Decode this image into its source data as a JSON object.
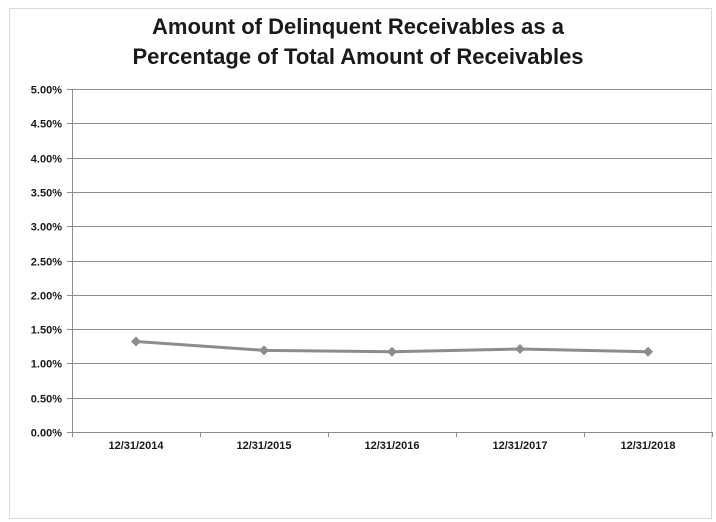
{
  "chart_data": {
    "type": "line",
    "title_lines": [
      "Amount of Delinquent Receivables as a",
      "Percentage of Total Amount of Receivables"
    ],
    "categories": [
      "12/31/2014",
      "12/31/2015",
      "12/31/2016",
      "12/31/2017",
      "12/31/2018"
    ],
    "series": [
      {
        "values": [
          1.32,
          1.19,
          1.17,
          1.21,
          1.17
        ]
      }
    ],
    "ylim": [
      0,
      5
    ],
    "ytick_values": [
      0,
      0.5,
      1,
      1.5,
      2,
      2.5,
      3,
      3.5,
      4,
      4.5,
      5
    ],
    "ytick_labels": [
      "0.00%",
      "0.50%",
      "1.00%",
      "1.50%",
      "2.00%",
      "2.50%",
      "3.00%",
      "3.50%",
      "4.00%",
      "4.50%",
      "5.00%"
    ],
    "grid": true,
    "marker": "diamond",
    "series_color": "#8c8c8c",
    "grid_color": "#8c8c8c",
    "axis_color": "#8c8c8c"
  }
}
